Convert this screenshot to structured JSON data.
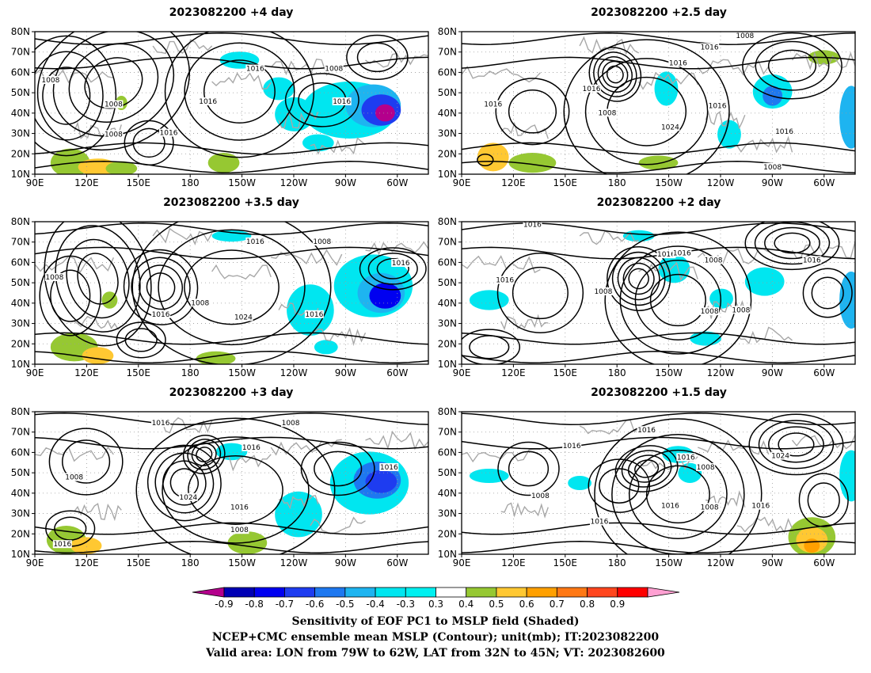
{
  "panels": [
    {
      "title": "2023082200  +4 day",
      "labels": [
        "1008",
        "1016",
        "1008",
        "1016",
        "1016",
        "1008",
        "1008",
        "1016"
      ]
    },
    {
      "title": "2023082200  +2.5  day",
      "labels": [
        "1008",
        "1016",
        "1016",
        "1016",
        "1008",
        "1016",
        "1024",
        "1016",
        "1016",
        "1008"
      ]
    },
    {
      "title": "2023082200  +3.5  day",
      "labels": [
        "1008",
        "1016",
        "1008",
        "1008",
        "1016",
        "1024",
        "1016",
        "1016"
      ]
    },
    {
      "title": "2023082200  +2  day",
      "labels": [
        "1016",
        "1016",
        "1016",
        "1008",
        "1016",
        "1008",
        "1016",
        "1008",
        "1008"
      ]
    },
    {
      "title": "2023082200  +3  day",
      "labels": [
        "1016",
        "1008",
        "1016",
        "1016",
        "1008",
        "1024",
        "1016",
        "1008",
        "1016"
      ]
    },
    {
      "title": "2023082200  +1.5  day",
      "labels": [
        "1016",
        "1016",
        "1008",
        "1016",
        "1008",
        "1024",
        "1016",
        "1016",
        "1008",
        "1016"
      ]
    }
  ],
  "map": {
    "lat_labels": [
      "80N",
      "70N",
      "60N",
      "50N",
      "40N",
      "30N",
      "20N",
      "10N"
    ],
    "lon_labels": [
      "90E",
      "120E",
      "150E",
      "180",
      "150W",
      "120W",
      "90W",
      "60W"
    ]
  },
  "colorbar": {
    "ticks": [
      "-0.9",
      "-0.8",
      "-0.7",
      "-0.6",
      "-0.5",
      "-0.4",
      "-0.3",
      "0.3",
      "0.4",
      "0.5",
      "0.6",
      "0.7",
      "0.8",
      "0.9"
    ],
    "colors": [
      "#b4008c",
      "#0000b4",
      "#0000f0",
      "#1e3cf0",
      "#1e78f0",
      "#1eb4f0",
      "#00e6f0",
      "#00f0f0",
      "#ffffff",
      "#96c832",
      "#ffc832",
      "#ffa000",
      "#ff7814",
      "#ff461e",
      "#ff0000",
      "#ffa0d2"
    ]
  },
  "caption": {
    "line1": "Sensitivity of EOF PC1 to MSLP field (Shaded)",
    "line2": "NCEP+CMC ensemble mean MSLP (Contour); unit(mb); IT:2023082200",
    "line3": "Valid area: LON from 79W to 62W, LAT from 32N to 45N; VT: 2023082600"
  }
}
